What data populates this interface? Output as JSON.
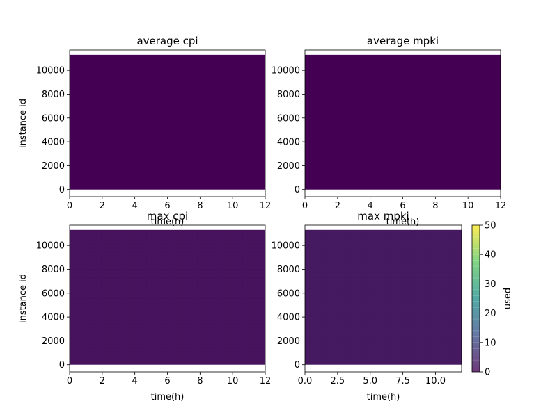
{
  "chart_data": [
    {
      "type": "heatmap",
      "title": "average cpi",
      "xlabel": "time(h)",
      "ylabel": "instance id",
      "xlim": [
        0,
        12
      ],
      "ylim": [
        -600,
        11700
      ],
      "x_ticks": [
        0,
        2,
        4,
        6,
        8,
        10,
        12
      ],
      "y_ticks": [
        0,
        2000,
        4000,
        6000,
        8000,
        10000
      ],
      "data_extent": {
        "x": [
          0,
          12
        ],
        "y": [
          0,
          11300
        ]
      },
      "fill_color": "#440154",
      "value_level": 0
    },
    {
      "type": "heatmap",
      "title": "average mpki",
      "xlabel": "time(h)",
      "ylabel": "",
      "xlim": [
        0,
        12
      ],
      "ylim": [
        -600,
        11700
      ],
      "x_ticks": [
        0,
        2,
        4,
        6,
        8,
        10,
        12
      ],
      "y_ticks": [
        0,
        2000,
        4000,
        6000,
        8000,
        10000
      ],
      "data_extent": {
        "x": [
          0,
          12
        ],
        "y": [
          0,
          11300
        ]
      },
      "fill_color": "#440154",
      "value_level": 0
    },
    {
      "type": "heatmap",
      "title": "max cpi",
      "xlabel": "time(h)",
      "ylabel": "instance id",
      "xlim": [
        0,
        12
      ],
      "ylim": [
        -600,
        11700
      ],
      "x_ticks": [
        0,
        2,
        4,
        6,
        8,
        10,
        12
      ],
      "y_ticks": [
        0,
        2000,
        4000,
        6000,
        8000,
        10000
      ],
      "data_extent": {
        "x": [
          0,
          12
        ],
        "y": [
          0,
          11300
        ]
      },
      "fill_color": "#46125c",
      "value_level": 1
    },
    {
      "type": "heatmap",
      "title": "max mpki",
      "xlabel": "time(h)",
      "ylabel": "",
      "xlim": [
        0,
        12
      ],
      "ylim": [
        -600,
        11700
      ],
      "x_ticks": [
        0.0,
        2.5,
        5.0,
        7.5,
        10.0
      ],
      "x_tick_labels": [
        "0.0",
        "2.5",
        "5.0",
        "7.5",
        "10.0"
      ],
      "y_ticks": [
        0,
        2000,
        4000,
        6000,
        8000,
        10000
      ],
      "data_extent": {
        "x": [
          0,
          12
        ],
        "y": [
          0,
          11300
        ]
      },
      "fill_color": "#44195f",
      "value_level": 2
    }
  ],
  "colorbar": {
    "label": "used",
    "min": 0,
    "max": 50,
    "ticks": [
      0,
      10,
      20,
      30,
      40,
      50
    ],
    "colormap": [
      "#440154",
      "#3b528b",
      "#21918c",
      "#5ec962",
      "#fde725"
    ]
  }
}
